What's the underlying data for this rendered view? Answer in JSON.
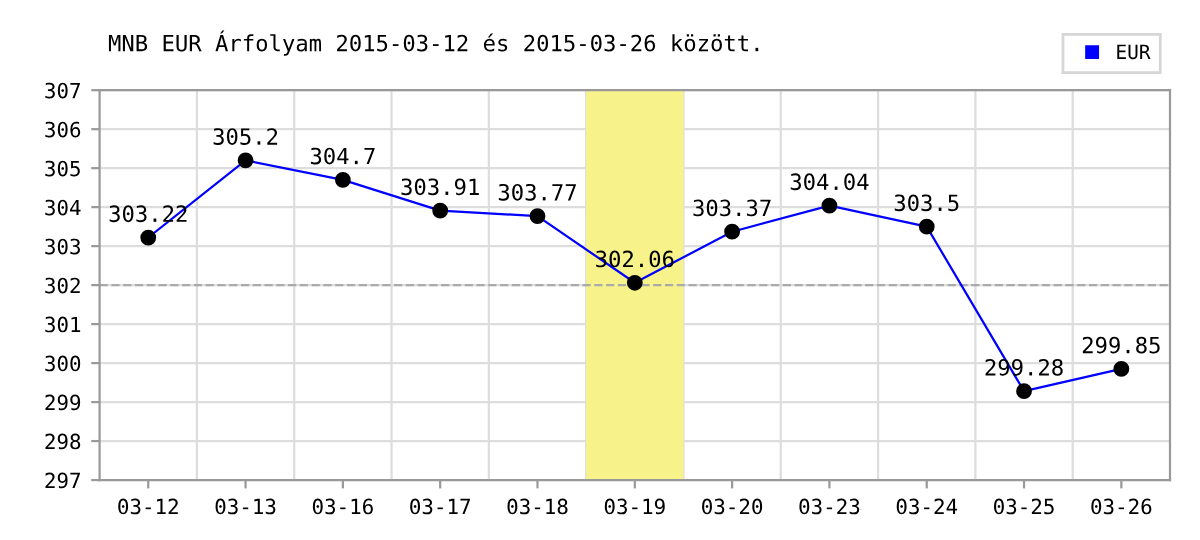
{
  "chart_data": {
    "type": "line",
    "title": "MNB EUR Árfolyam 2015-03-12 és 2015-03-26 között.",
    "categories": [
      "03-12",
      "03-13",
      "03-16",
      "03-17",
      "03-18",
      "03-19",
      "03-20",
      "03-23",
      "03-24",
      "03-25",
      "03-26"
    ],
    "series": [
      {
        "name": "EUR",
        "color": "#0000ff",
        "values": [
          303.22,
          305.2,
          304.7,
          303.91,
          303.77,
          302.06,
          303.37,
          304.04,
          303.5,
          299.28,
          299.85
        ]
      }
    ],
    "ylim": [
      297,
      307
    ],
    "yticks": [
      297,
      298,
      299,
      300,
      301,
      302,
      303,
      304,
      305,
      306,
      307
    ],
    "grid": true,
    "legend": "top right",
    "marker": "circle",
    "line_style": "solid",
    "data_labels": true,
    "ref_lines": [
      {
        "axis": "y",
        "value": 302,
        "label": null,
        "color": "#aaaaaa",
        "line_style": "dashed"
      }
    ],
    "bands": [
      {
        "axis": "x",
        "from": "03-19",
        "to": "03-19",
        "label": null,
        "color": "#f7f38a"
      }
    ]
  }
}
